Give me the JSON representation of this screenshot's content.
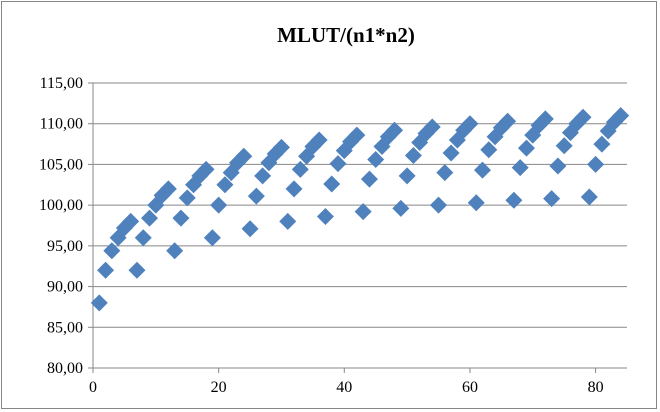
{
  "chart_data": {
    "type": "scatter",
    "title": "MLUT/(n1*n2)",
    "xlabel": "",
    "ylabel": "",
    "xlim": [
      0,
      85
    ],
    "ylim": [
      80,
      115
    ],
    "x_ticks": [
      0,
      20,
      40,
      60,
      80
    ],
    "y_ticks": [
      80,
      85,
      90,
      95,
      100,
      105,
      110,
      115
    ],
    "x_tick_labels": [
      "0",
      "20",
      "40",
      "60",
      "80"
    ],
    "y_tick_labels": [
      "80,00",
      "85,00",
      "90,00",
      "95,00",
      "100,00",
      "105,00",
      "110,00",
      "115,00"
    ],
    "grid": "horizontal",
    "legend": "none",
    "marker": "diamond",
    "marker_color": "#4f81bd",
    "series": [
      {
        "points": [
          [
            1,
            88.0
          ],
          [
            2,
            92.0
          ],
          [
            3,
            94.4
          ],
          [
            4,
            96.0
          ],
          [
            5,
            97.2
          ],
          [
            6,
            98.0
          ],
          [
            7,
            92.0
          ],
          [
            8,
            96.0
          ],
          [
            9,
            98.4
          ],
          [
            10,
            100.0
          ],
          [
            11,
            101.2
          ],
          [
            12,
            102.0
          ],
          [
            13,
            94.4
          ],
          [
            14,
            98.4
          ],
          [
            15,
            100.9
          ],
          [
            16,
            102.5
          ],
          [
            17,
            103.6
          ],
          [
            18,
            104.4
          ],
          [
            19,
            96.0
          ],
          [
            20,
            100.0
          ],
          [
            21,
            102.5
          ],
          [
            22,
            104.0
          ],
          [
            23,
            105.2
          ],
          [
            24,
            106.0
          ],
          [
            25,
            97.1
          ],
          [
            26,
            101.1
          ],
          [
            27,
            103.6
          ],
          [
            28,
            105.2
          ],
          [
            29,
            106.3
          ],
          [
            30,
            107.1
          ],
          [
            31,
            98.0
          ],
          [
            32,
            102.0
          ],
          [
            33,
            104.4
          ],
          [
            34,
            106.0
          ],
          [
            35,
            107.2
          ],
          [
            36,
            108.0
          ],
          [
            37,
            98.6
          ],
          [
            38,
            102.6
          ],
          [
            39,
            105.1
          ],
          [
            40,
            106.7
          ],
          [
            41,
            107.8
          ],
          [
            42,
            108.6
          ],
          [
            43,
            99.2
          ],
          [
            44,
            103.2
          ],
          [
            45,
            105.6
          ],
          [
            46,
            107.2
          ],
          [
            47,
            108.4
          ],
          [
            48,
            109.2
          ],
          [
            49,
            99.6
          ],
          [
            50,
            103.6
          ],
          [
            51,
            106.1
          ],
          [
            52,
            107.7
          ],
          [
            53,
            108.8
          ],
          [
            54,
            109.6
          ],
          [
            55,
            100.0
          ],
          [
            56,
            104.0
          ],
          [
            57,
            106.4
          ],
          [
            58,
            108.0
          ],
          [
            59,
            109.2
          ],
          [
            60,
            110.0
          ],
          [
            61,
            100.3
          ],
          [
            62,
            104.3
          ],
          [
            63,
            106.8
          ],
          [
            64,
            108.4
          ],
          [
            65,
            109.5
          ],
          [
            66,
            110.3
          ],
          [
            67,
            100.6
          ],
          [
            68,
            104.6
          ],
          [
            69,
            107.0
          ],
          [
            70,
            108.6
          ],
          [
            71,
            109.8
          ],
          [
            72,
            110.6
          ],
          [
            73,
            100.8
          ],
          [
            74,
            104.8
          ],
          [
            75,
            107.3
          ],
          [
            76,
            108.9
          ],
          [
            77,
            110.0
          ],
          [
            78,
            110.8
          ],
          [
            79,
            101.0
          ],
          [
            80,
            105.0
          ],
          [
            81,
            107.5
          ],
          [
            82,
            109.1
          ],
          [
            83,
            110.2
          ],
          [
            84,
            111.0
          ]
        ]
      }
    ]
  }
}
